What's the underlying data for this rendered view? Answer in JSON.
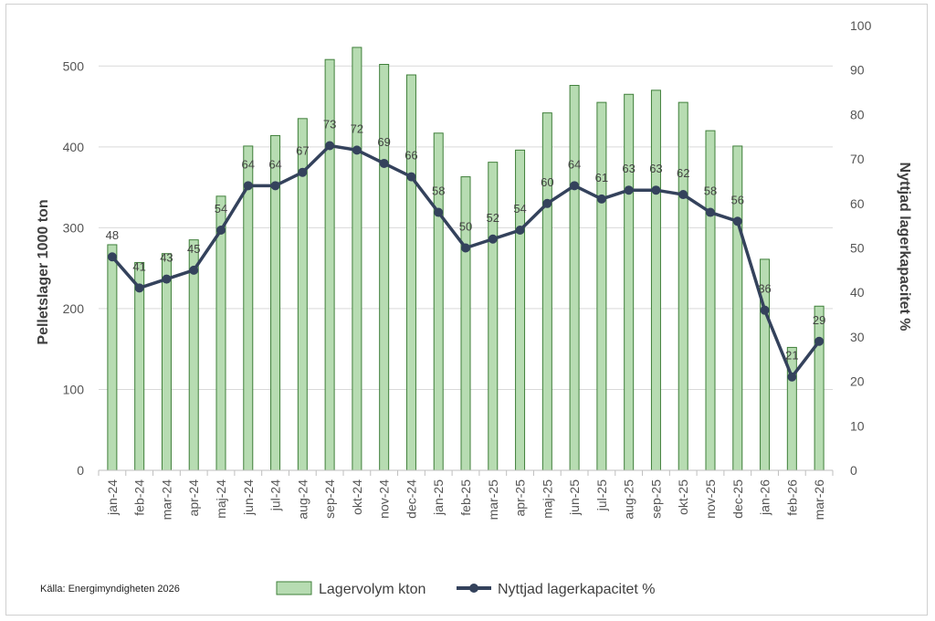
{
  "chart_data": {
    "type": "bar+line",
    "categories": [
      "jan-24",
      "feb-24",
      "mar-24",
      "apr-24",
      "maj-24",
      "jun-24",
      "jul-24",
      "aug-24",
      "sep-24",
      "okt-24",
      "nov-24",
      "dec-24",
      "jan-25",
      "feb-25",
      "mar-25",
      "apr-25",
      "maj-25",
      "jun-25",
      "jul-25",
      "aug-25",
      "sep-25",
      "okt-25",
      "nov-25",
      "dec-25",
      "jan-26",
      "feb-26",
      "mar-26"
    ],
    "series": [
      {
        "name": "Lagervolym kton",
        "type": "bar",
        "axis": "left",
        "color": "#b7dcb2",
        "edge_color": "#3f7f3a",
        "values": [
          279,
          257,
          268,
          285,
          339,
          401,
          414,
          435,
          508,
          523,
          502,
          489,
          417,
          363,
          381,
          396,
          442,
          476,
          455,
          465,
          470,
          455,
          420,
          401,
          261,
          152,
          203
        ]
      },
      {
        "name": "Nyttjad lagerkapacitet %",
        "type": "line",
        "axis": "right",
        "color": "#34425c",
        "values": [
          48,
          41,
          43,
          45,
          54,
          64,
          64,
          67,
          73,
          72,
          69,
          66,
          58,
          50,
          52,
          54,
          60,
          64,
          61,
          63,
          63,
          62,
          58,
          56,
          36,
          21,
          29
        ]
      }
    ],
    "ylabel": "Pelletslager 1000 ton",
    "ylabel_right": "Nyttjad lagerkapacitet %",
    "ylim": [
      0,
      550
    ],
    "yticks": [
      0,
      100,
      200,
      300,
      400,
      500
    ],
    "ylim_right": [
      0,
      100
    ],
    "yticks_right": [
      0,
      10,
      20,
      30,
      40,
      50,
      60,
      70,
      80,
      90,
      100
    ],
    "grid": true,
    "legend": "bottom-center"
  },
  "source": "Källa: Energimyndigheten 2026"
}
